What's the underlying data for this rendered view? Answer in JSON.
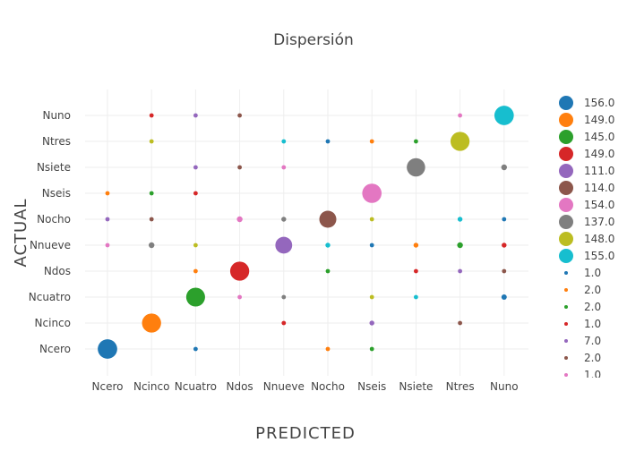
{
  "chart_data": {
    "type": "scatter",
    "title": "Dispersión",
    "xlabel": "PREDICTED",
    "ylabel": "ACTUAL",
    "x_categories": [
      "Ncero",
      "Ncinco",
      "Ncuatro",
      "Ndos",
      "Nnueve",
      "Nocho",
      "Nseis",
      "Nsiete",
      "Ntres",
      "Nuno"
    ],
    "y_categories": [
      "Ncero",
      "Ncinco",
      "Ncuatro",
      "Ndos",
      "Nnueve",
      "Nocho",
      "Nseis",
      "Nsiete",
      "Ntres",
      "Nuno"
    ],
    "grid": true,
    "legend_position": "right",
    "colors": [
      "#1f77b4",
      "#ff7f0e",
      "#2ca02c",
      "#d62728",
      "#9467bd",
      "#8c564b",
      "#e377c2",
      "#7f7f7f",
      "#bcbd22",
      "#17becf"
    ],
    "points": [
      {
        "x": "Ncero",
        "y": "Ncero",
        "value": 156,
        "color": "#1f77b4"
      },
      {
        "x": "Ncinco",
        "y": "Ncinco",
        "value": 149,
        "color": "#ff7f0e"
      },
      {
        "x": "Ncuatro",
        "y": "Ncuatro",
        "value": 145,
        "color": "#2ca02c"
      },
      {
        "x": "Ndos",
        "y": "Ndos",
        "value": 149,
        "color": "#d62728"
      },
      {
        "x": "Nnueve",
        "y": "Nnueve",
        "value": 111,
        "color": "#9467bd"
      },
      {
        "x": "Nocho",
        "y": "Nocho",
        "value": 114,
        "color": "#8c564b"
      },
      {
        "x": "Nseis",
        "y": "Nseis",
        "value": 154,
        "color": "#e377c2"
      },
      {
        "x": "Nsiete",
        "y": "Nsiete",
        "value": 137,
        "color": "#7f7f7f"
      },
      {
        "x": "Ntres",
        "y": "Ntres",
        "value": 148,
        "color": "#bcbd22"
      },
      {
        "x": "Nuno",
        "y": "Nuno",
        "value": 155,
        "color": "#17becf"
      },
      {
        "x": "Ncinco",
        "y": "Nuno",
        "value": 1,
        "color": "#d62728"
      },
      {
        "x": "Ncuatro",
        "y": "Nuno",
        "value": 1,
        "color": "#9467bd"
      },
      {
        "x": "Ndos",
        "y": "Nuno",
        "value": 1,
        "color": "#8c564b"
      },
      {
        "x": "Ntres",
        "y": "Nuno",
        "value": 1,
        "color": "#e377c2"
      },
      {
        "x": "Ncinco",
        "y": "Ntres",
        "value": 1,
        "color": "#bcbd22"
      },
      {
        "x": "Nnueve",
        "y": "Ntres",
        "value": 1,
        "color": "#17becf"
      },
      {
        "x": "Nocho",
        "y": "Ntres",
        "value": 1,
        "color": "#1f77b4"
      },
      {
        "x": "Nseis",
        "y": "Ntres",
        "value": 1,
        "color": "#ff7f0e"
      },
      {
        "x": "Nsiete",
        "y": "Ntres",
        "value": 1,
        "color": "#2ca02c"
      },
      {
        "x": "Ncuatro",
        "y": "Nsiete",
        "value": 1,
        "color": "#9467bd"
      },
      {
        "x": "Ndos",
        "y": "Nsiete",
        "value": 1,
        "color": "#8c564b"
      },
      {
        "x": "Nnueve",
        "y": "Nsiete",
        "value": 1,
        "color": "#e377c2"
      },
      {
        "x": "Nuno",
        "y": "Nsiete",
        "value": 4,
        "color": "#7f7f7f"
      },
      {
        "x": "Ncero",
        "y": "Nseis",
        "value": 1,
        "color": "#ff7f0e"
      },
      {
        "x": "Ncinco",
        "y": "Nseis",
        "value": 1,
        "color": "#2ca02c"
      },
      {
        "x": "Ncuatro",
        "y": "Nseis",
        "value": 1,
        "color": "#d62728"
      },
      {
        "x": "Ncero",
        "y": "Nocho",
        "value": 1,
        "color": "#9467bd"
      },
      {
        "x": "Ncinco",
        "y": "Nocho",
        "value": 1,
        "color": "#8c564b"
      },
      {
        "x": "Ndos",
        "y": "Nocho",
        "value": 4,
        "color": "#e377c2"
      },
      {
        "x": "Nnueve",
        "y": "Nocho",
        "value": 2,
        "color": "#7f7f7f"
      },
      {
        "x": "Nseis",
        "y": "Nocho",
        "value": 1,
        "color": "#bcbd22"
      },
      {
        "x": "Ntres",
        "y": "Nocho",
        "value": 2,
        "color": "#17becf"
      },
      {
        "x": "Nuno",
        "y": "Nocho",
        "value": 1,
        "color": "#1f77b4"
      },
      {
        "x": "Ncero",
        "y": "Nnueve",
        "value": 1,
        "color": "#e377c2"
      },
      {
        "x": "Ncinco",
        "y": "Nnueve",
        "value": 4,
        "color": "#7f7f7f"
      },
      {
        "x": "Ncuatro",
        "y": "Nnueve",
        "value": 1,
        "color": "#bcbd22"
      },
      {
        "x": "Nocho",
        "y": "Nnueve",
        "value": 2,
        "color": "#17becf"
      },
      {
        "x": "Nseis",
        "y": "Nnueve",
        "value": 1,
        "color": "#1f77b4"
      },
      {
        "x": "Nsiete",
        "y": "Nnueve",
        "value": 2,
        "color": "#ff7f0e"
      },
      {
        "x": "Ntres",
        "y": "Nnueve",
        "value": 4,
        "color": "#2ca02c"
      },
      {
        "x": "Nuno",
        "y": "Nnueve",
        "value": 2,
        "color": "#d62728"
      },
      {
        "x": "Ncuatro",
        "y": "Ndos",
        "value": 1,
        "color": "#ff7f0e"
      },
      {
        "x": "Nocho",
        "y": "Ndos",
        "value": 1,
        "color": "#2ca02c"
      },
      {
        "x": "Nsiete",
        "y": "Ndos",
        "value": 1,
        "color": "#d62728"
      },
      {
        "x": "Ntres",
        "y": "Ndos",
        "value": 1,
        "color": "#9467bd"
      },
      {
        "x": "Nuno",
        "y": "Ndos",
        "value": 1,
        "color": "#8c564b"
      },
      {
        "x": "Ndos",
        "y": "Ncuatro",
        "value": 1,
        "color": "#e377c2"
      },
      {
        "x": "Nnueve",
        "y": "Ncuatro",
        "value": 1,
        "color": "#7f7f7f"
      },
      {
        "x": "Nseis",
        "y": "Ncuatro",
        "value": 1,
        "color": "#bcbd22"
      },
      {
        "x": "Nsiete",
        "y": "Ncuatro",
        "value": 1,
        "color": "#17becf"
      },
      {
        "x": "Nuno",
        "y": "Ncuatro",
        "value": 3,
        "color": "#1f77b4"
      },
      {
        "x": "Nnueve",
        "y": "Ncinco",
        "value": 1,
        "color": "#d62728"
      },
      {
        "x": "Nseis",
        "y": "Ncinco",
        "value": 2,
        "color": "#9467bd"
      },
      {
        "x": "Ntres",
        "y": "Ncinco",
        "value": 1,
        "color": "#8c564b"
      },
      {
        "x": "Ncuatro",
        "y": "Ncero",
        "value": 1,
        "color": "#1f77b4"
      },
      {
        "x": "Nocho",
        "y": "Ncero",
        "value": 1,
        "color": "#ff7f0e"
      },
      {
        "x": "Nseis",
        "y": "Ncero",
        "value": 1,
        "color": "#2ca02c"
      }
    ],
    "legend": [
      {
        "label": "156.0",
        "color": "#1f77b4",
        "big": true
      },
      {
        "label": "149.0",
        "color": "#ff7f0e",
        "big": true
      },
      {
        "label": "145.0",
        "color": "#2ca02c",
        "big": true
      },
      {
        "label": "149.0",
        "color": "#d62728",
        "big": true
      },
      {
        "label": "111.0",
        "color": "#9467bd",
        "big": true
      },
      {
        "label": "114.0",
        "color": "#8c564b",
        "big": true
      },
      {
        "label": "154.0",
        "color": "#e377c2",
        "big": true
      },
      {
        "label": "137.0",
        "color": "#7f7f7f",
        "big": true
      },
      {
        "label": "148.0",
        "color": "#bcbd22",
        "big": true
      },
      {
        "label": "155.0",
        "color": "#17becf",
        "big": true
      },
      {
        "label": "1.0",
        "color": "#1f77b4",
        "big": false
      },
      {
        "label": "2.0",
        "color": "#ff7f0e",
        "big": false
      },
      {
        "label": "2.0",
        "color": "#2ca02c",
        "big": false
      },
      {
        "label": "1.0",
        "color": "#d62728",
        "big": false
      },
      {
        "label": "7.0",
        "color": "#9467bd",
        "big": false
      },
      {
        "label": "2.0",
        "color": "#8c564b",
        "big": false
      },
      {
        "label": "1.0",
        "color": "#e377c2",
        "big": false
      }
    ]
  }
}
